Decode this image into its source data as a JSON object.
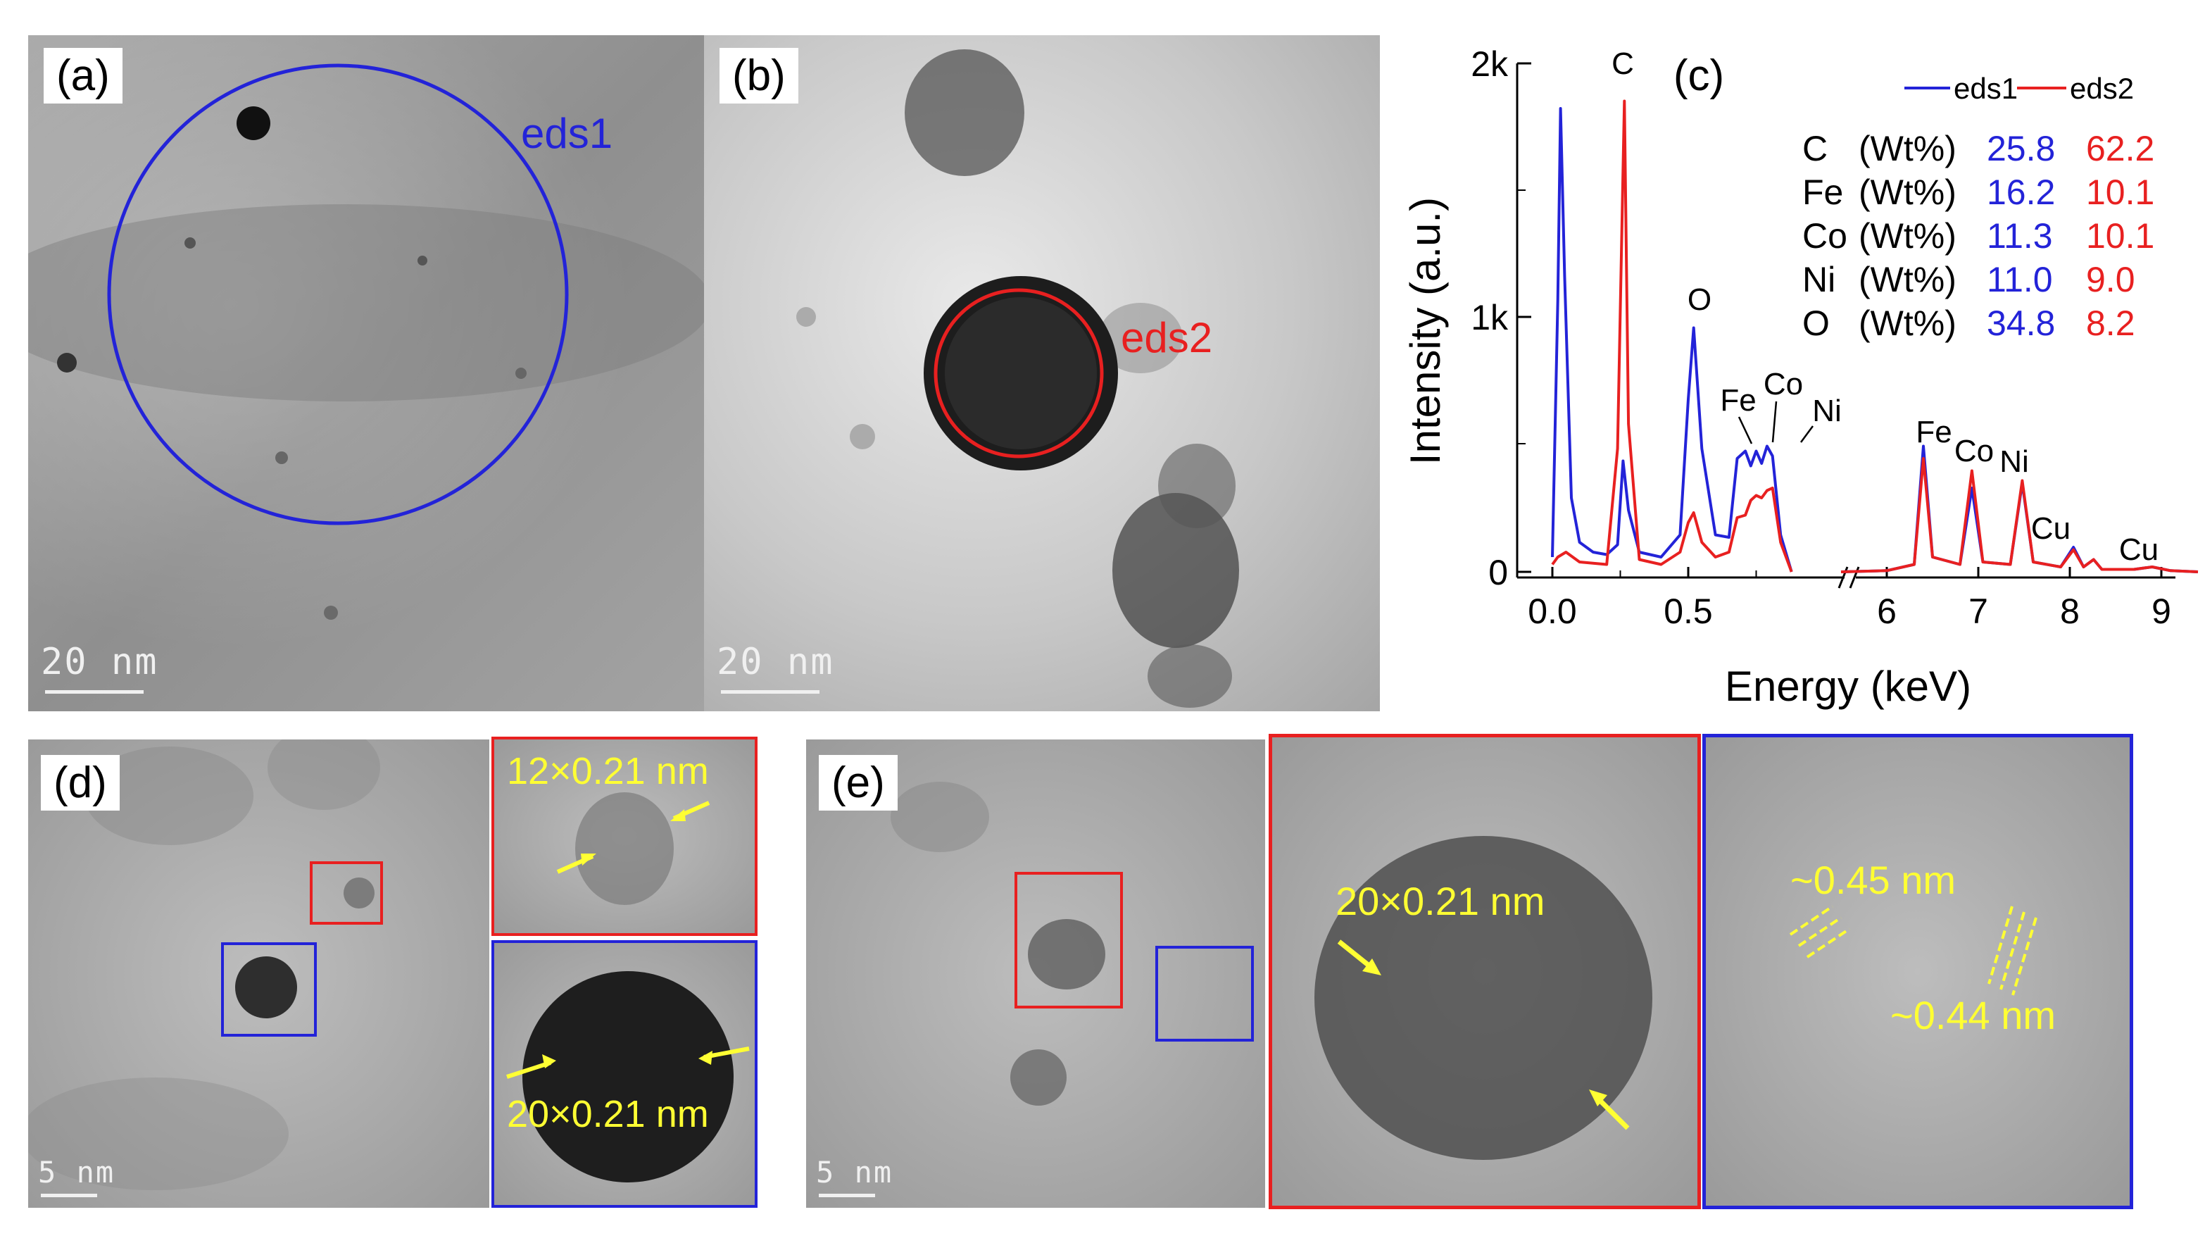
{
  "panels": {
    "a": {
      "label": "(a)",
      "region_label": "eds1",
      "scale": "20 nm"
    },
    "b": {
      "label": "(b)",
      "region_label": "eds2",
      "scale": "20 nm"
    },
    "c": {
      "label": "(c)"
    },
    "d": {
      "label": "(d)",
      "scale": "5 nm",
      "inset_top": "12×0.21 nm",
      "inset_bottom": "20×0.21 nm"
    },
    "e": {
      "label": "(e)",
      "scale": "5 nm",
      "inset_red": "20×0.21 nm",
      "inset_blue_1": "~0.45 nm",
      "inset_blue_2": "~0.44 nm"
    }
  },
  "colors": {
    "eds1": "#2323d8",
    "eds2": "#e82020",
    "annotation": "#ffff33"
  },
  "composition_table": {
    "rows": [
      {
        "element": "C",
        "unit": "(Wt%)",
        "eds1": "25.8",
        "eds2": "62.2"
      },
      {
        "element": "Fe",
        "unit": "(Wt%)",
        "eds1": "16.2",
        "eds2": "10.1"
      },
      {
        "element": "Co",
        "unit": "(Wt%)",
        "eds1": "11.3",
        "eds2": "10.1"
      },
      {
        "element": "Ni",
        "unit": "(Wt%)",
        "eds1": "11.0",
        "eds2": "9.0"
      },
      {
        "element": "O",
        "unit": "(Wt%)",
        "eds1": "34.8",
        "eds2": "8.2"
      }
    ]
  },
  "chart_data": {
    "type": "line",
    "xlabel": "Energy (keV)",
    "ylabel": "Intensity (a.u.)",
    "ylim": [
      0,
      2000
    ],
    "y_ticks": [
      "0",
      "1k",
      "2k"
    ],
    "x_ticks_low": [
      "0.0",
      "0.5"
    ],
    "x_ticks_high": [
      "6",
      "7",
      "8",
      "9"
    ],
    "legend": [
      "eds1",
      "eds2"
    ],
    "peak_labels": [
      "C",
      "O",
      "Fe",
      "Co",
      "Ni",
      "Fe",
      "Co",
      "Ni",
      "Cu",
      "Cu"
    ],
    "series": [
      {
        "name": "eds1",
        "low_x": [
          0.0,
          0.02,
          0.03,
          0.045,
          0.07,
          0.1,
          0.15,
          0.2,
          0.24,
          0.26,
          0.28,
          0.32,
          0.4,
          0.47,
          0.5,
          0.52,
          0.55,
          0.6,
          0.65,
          0.68,
          0.71,
          0.73,
          0.75,
          0.77,
          0.79,
          0.81,
          0.84,
          0.88
        ],
        "low_y": [
          60,
          1100,
          1880,
          1200,
          300,
          120,
          80,
          70,
          110,
          450,
          250,
          80,
          60,
          150,
          700,
          990,
          500,
          150,
          140,
          460,
          490,
          430,
          490,
          440,
          510,
          470,
          150,
          0
        ],
        "high_x": [
          5.5,
          6.0,
          6.3,
          6.4,
          6.5,
          6.8,
          6.93,
          7.05,
          7.35,
          7.48,
          7.6,
          7.9,
          8.04,
          8.15,
          8.26,
          8.35,
          8.7,
          8.9,
          9.1,
          9.4
        ],
        "high_y": [
          0,
          5,
          30,
          510,
          60,
          30,
          340,
          40,
          30,
          360,
          40,
          20,
          100,
          20,
          50,
          10,
          10,
          20,
          5,
          0
        ]
      },
      {
        "name": "eds2",
        "low_x": [
          0.0,
          0.02,
          0.05,
          0.1,
          0.2,
          0.24,
          0.265,
          0.28,
          0.32,
          0.4,
          0.47,
          0.5,
          0.52,
          0.55,
          0.6,
          0.65,
          0.68,
          0.71,
          0.73,
          0.75,
          0.77,
          0.79,
          0.81,
          0.84,
          0.88
        ],
        "low_y": [
          30,
          60,
          80,
          40,
          30,
          500,
          1910,
          600,
          50,
          30,
          80,
          200,
          240,
          120,
          60,
          80,
          220,
          230,
          290,
          310,
          300,
          330,
          340,
          120,
          0
        ],
        "high_x": [
          5.5,
          6.0,
          6.3,
          6.4,
          6.5,
          6.8,
          6.93,
          7.05,
          7.35,
          7.48,
          7.6,
          7.9,
          8.04,
          8.15,
          8.26,
          8.35,
          8.7,
          8.9,
          9.1,
          9.4
        ],
        "high_y": [
          0,
          5,
          30,
          460,
          60,
          30,
          410,
          40,
          30,
          370,
          40,
          20,
          90,
          20,
          50,
          10,
          10,
          20,
          5,
          0
        ]
      }
    ]
  }
}
